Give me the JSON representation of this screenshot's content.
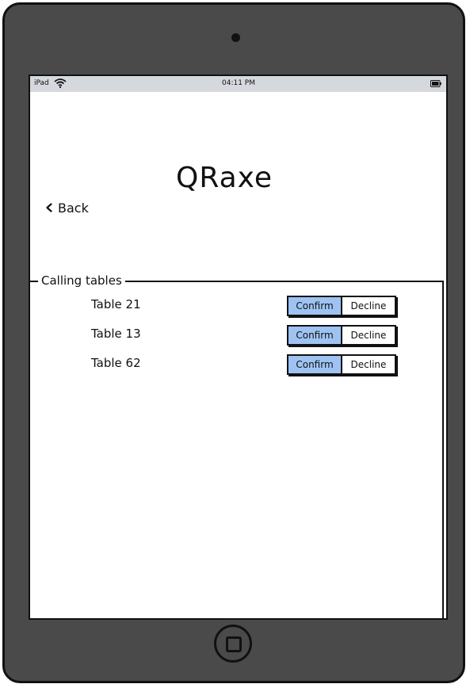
{
  "status_bar": {
    "device": "iPad",
    "time": "04:11 PM"
  },
  "header": {
    "title": "QRaxe",
    "back_label": "Back"
  },
  "calling_tables": {
    "legend": "Calling tables",
    "rows": [
      {
        "label": "Table 21",
        "confirm": "Confirm",
        "decline": "Decline"
      },
      {
        "label": "Table 13",
        "confirm": "Confirm",
        "decline": "Decline"
      },
      {
        "label": "Table 62",
        "confirm": "Confirm",
        "decline": "Decline"
      }
    ]
  },
  "colors": {
    "device_body": "#4a4a4a",
    "status_bar": "#d5d9dd",
    "confirm_fill": "#9ec3f2"
  },
  "icons": {
    "wifi": "wifi-icon",
    "battery": "battery-icon",
    "back": "chevron-left-icon",
    "home": "home-button-icon"
  }
}
